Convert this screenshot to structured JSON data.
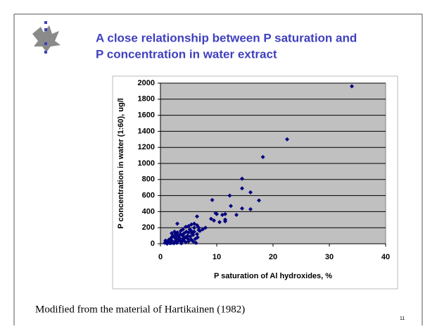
{
  "title": "A close relationship between P saturation and",
  "title_line2": "P concentration in water extract",
  "caption": "Modified from the material of Hartikainen (1982)",
  "slide_number": "11",
  "chart_data": {
    "type": "scatter",
    "color": "#000080",
    "grid": true,
    "xlabel": "P saturation of Al hydroxides, %",
    "ylabel": "P concentration in water (1:60), ug/l",
    "xlim": [
      0,
      40
    ],
    "xticks": [
      0,
      10,
      20,
      30,
      40
    ],
    "ylim": [
      0,
      2000
    ],
    "yticks": [
      0,
      200,
      400,
      600,
      800,
      1000,
      1200,
      1400,
      1600,
      1800,
      2000
    ],
    "x": [
      34,
      22.5,
      18.2,
      14.5,
      14.5,
      16,
      12.3,
      17.5,
      9.2,
      16,
      12.5,
      14.5,
      10,
      9.8,
      11,
      11.5,
      13.5,
      11.5,
      11.5,
      9,
      9.5,
      10.5,
      8,
      7.5,
      6.5,
      6,
      6.5,
      6,
      5.5,
      5,
      4.5,
      3,
      2.5,
      4,
      3.5,
      2,
      6.8,
      7,
      6.5,
      5.5,
      5,
      4.8,
      4.5,
      4,
      3.5,
      3,
      2.5,
      2,
      1.5,
      1,
      0.8,
      1.2,
      2,
      2.8,
      3.2,
      3.8,
      4.2,
      5.2,
      5.8,
      6.2,
      5.5,
      5,
      4.5,
      1.8,
      2.2,
      3,
      3.6,
      4,
      4.3,
      3.3,
      2.6,
      1.5,
      0.9,
      1.1,
      2.4,
      3.8,
      4.6,
      5.3,
      6,
      6.8,
      5.8,
      6.3,
      3,
      2,
      2.7,
      4.9,
      3.4,
      1.7,
      6.6,
      5.6,
      4.1,
      2.9,
      3.7
    ],
    "values": [
      1960,
      1300,
      1080,
      810,
      690,
      640,
      600,
      540,
      545,
      430,
      470,
      440,
      370,
      380,
      360,
      370,
      360,
      300,
      280,
      310,
      290,
      270,
      200,
      180,
      340,
      250,
      230,
      200,
      240,
      220,
      210,
      250,
      150,
      180,
      120,
      130,
      170,
      160,
      120,
      160,
      140,
      100,
      80,
      60,
      40,
      20,
      80,
      40,
      20,
      30,
      10,
      0,
      10,
      60,
      90,
      110,
      130,
      180,
      110,
      60,
      50,
      30,
      20,
      60,
      100,
      140,
      160,
      100,
      70,
      50,
      30,
      50,
      40,
      15,
      5,
      30,
      150,
      90,
      150,
      200,
      30,
      10,
      100,
      80,
      120,
      60,
      70,
      5,
      80,
      130,
      40,
      10,
      5
    ]
  }
}
